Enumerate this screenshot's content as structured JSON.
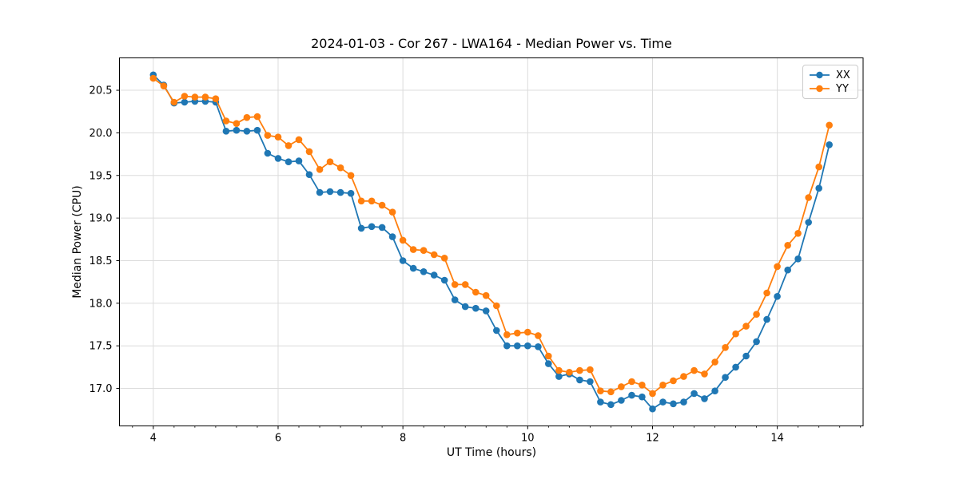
{
  "chart_data": {
    "type": "line",
    "title": "2024-01-03 - Cor 267 - LWA164 - Median Power vs. Time",
    "xlabel": "UT Time (hours)",
    "ylabel": "Median Power (CPU)",
    "xlim": [
      3.458,
      15.375
    ],
    "ylim": [
      16.56,
      20.88
    ],
    "x_major_ticks": [
      4,
      6,
      8,
      10,
      12,
      14
    ],
    "x_tick_labels": [
      "4",
      "6",
      "8",
      "10",
      "12",
      "14"
    ],
    "x_minor_tick_step": 0.33333,
    "y_ticks": [
      17.0,
      17.5,
      18.0,
      18.5,
      19.0,
      19.5,
      20.0,
      20.5
    ],
    "y_tick_labels": [
      "17.0",
      "17.5",
      "18.0",
      "18.5",
      "19.0",
      "19.5",
      "20.0",
      "20.5"
    ],
    "grid": true,
    "grid_color": "#dcdcdc",
    "spine_color": "#000000",
    "legend_position": "upper right",
    "x": [
      4.0,
      4.167,
      4.333,
      4.5,
      4.667,
      4.833,
      5.0,
      5.167,
      5.333,
      5.5,
      5.667,
      5.833,
      6.0,
      6.167,
      6.333,
      6.5,
      6.667,
      6.833,
      7.0,
      7.167,
      7.333,
      7.5,
      7.667,
      7.833,
      8.0,
      8.167,
      8.333,
      8.5,
      8.667,
      8.833,
      9.0,
      9.167,
      9.333,
      9.5,
      9.667,
      9.833,
      10.0,
      10.167,
      10.333,
      10.5,
      10.667,
      10.833,
      11.0,
      11.167,
      11.333,
      11.5,
      11.667,
      11.833,
      12.0,
      12.167,
      12.333,
      12.5,
      12.667,
      12.833,
      13.0,
      13.167,
      13.333,
      13.5,
      13.667,
      13.833,
      14.0,
      14.167,
      14.333,
      14.5,
      14.667,
      14.833
    ],
    "series": [
      {
        "name": "XX",
        "color": "#1f77b4",
        "values": [
          20.68,
          20.56,
          20.35,
          20.36,
          20.37,
          20.37,
          20.36,
          20.02,
          20.03,
          20.02,
          20.03,
          19.76,
          19.7,
          19.66,
          19.67,
          19.51,
          19.3,
          19.31,
          19.3,
          19.29,
          18.88,
          18.9,
          18.89,
          18.78,
          18.5,
          18.41,
          18.37,
          18.33,
          18.27,
          18.04,
          17.96,
          17.94,
          17.91,
          17.68,
          17.5,
          17.5,
          17.5,
          17.49,
          17.29,
          17.14,
          17.17,
          17.1,
          17.08,
          16.84,
          16.81,
          16.86,
          16.92,
          16.9,
          16.76,
          16.84,
          16.82,
          16.84,
          16.94,
          16.88,
          16.97,
          17.13,
          17.25,
          17.38,
          17.55,
          17.81,
          18.08,
          18.39,
          18.52,
          18.95,
          19.35,
          19.86
        ]
      },
      {
        "name": "YY",
        "color": "#ff7f0e",
        "values": [
          20.64,
          20.55,
          20.36,
          20.43,
          20.42,
          20.42,
          20.4,
          20.14,
          20.11,
          20.18,
          20.19,
          19.97,
          19.95,
          19.85,
          19.92,
          19.78,
          19.57,
          19.66,
          19.59,
          19.5,
          19.2,
          19.2,
          19.15,
          19.07,
          18.74,
          18.63,
          18.62,
          18.57,
          18.53,
          18.22,
          18.22,
          18.13,
          18.09,
          17.97,
          17.63,
          17.65,
          17.66,
          17.62,
          17.38,
          17.21,
          17.19,
          17.21,
          17.22,
          16.97,
          16.96,
          17.02,
          17.08,
          17.04,
          16.94,
          17.04,
          17.09,
          17.14,
          17.21,
          17.17,
          17.31,
          17.48,
          17.64,
          17.73,
          17.87,
          18.12,
          18.43,
          18.68,
          18.82,
          19.24,
          19.6,
          20.09
        ]
      }
    ]
  }
}
